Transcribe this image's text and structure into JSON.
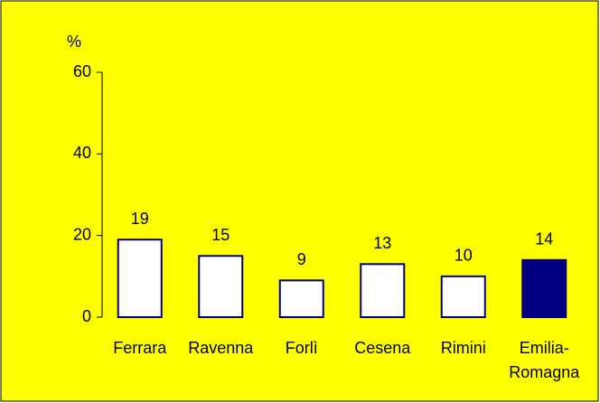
{
  "chart_data": {
    "type": "bar",
    "y_axis_label": "%",
    "categories": [
      "Ferrara",
      "Ravenna",
      "Forlì",
      "Cesena",
      "Rimini",
      "Emilia-Romagna"
    ],
    "values": [
      19,
      15,
      9,
      13,
      10,
      14
    ],
    "colors": [
      "#ffffff",
      "#ffffff",
      "#ffffff",
      "#ffffff",
      "#ffffff",
      "#000080"
    ],
    "edge_color": "#000080",
    "background": "#ffff00",
    "ylim": [
      0,
      60
    ],
    "yticks": [
      0,
      20,
      40,
      60
    ],
    "grid": false
  }
}
